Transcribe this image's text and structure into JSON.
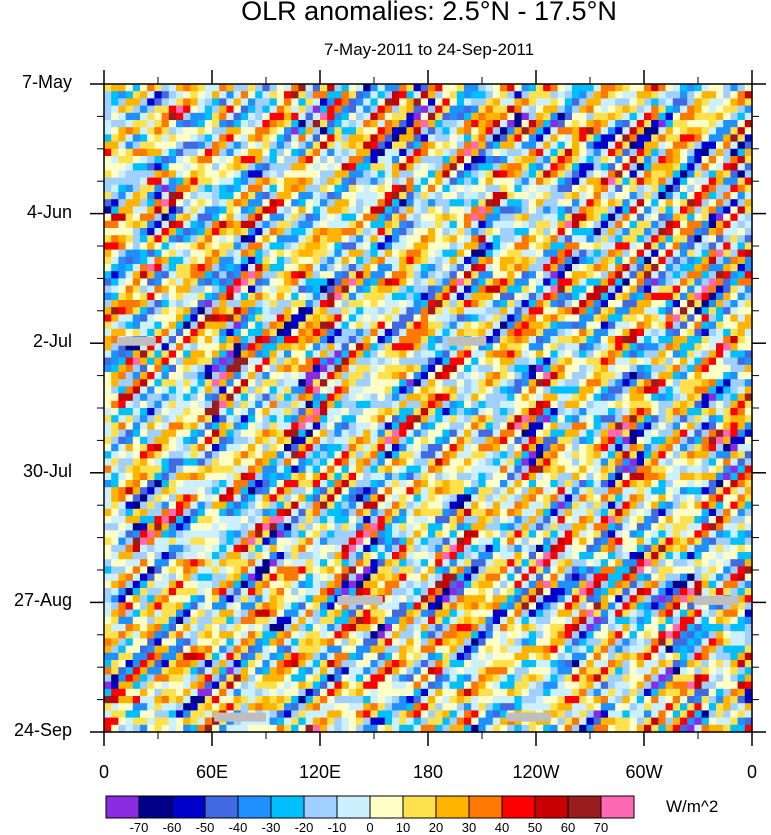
{
  "chart_data": {
    "type": "heatmap",
    "title": "OLR anomalies: 2.5°N - 17.5°N",
    "subtitle": "7-May-2011 to 24-Sep-2011",
    "x_ticks": [
      "0",
      "60E",
      "120E",
      "180",
      "120W",
      "60W",
      "0"
    ],
    "x_range_deg_east": [
      0,
      360
    ],
    "y_ticks": [
      "7-May",
      "4-Jun",
      "2-Jul",
      "30-Jul",
      "27-Aug",
      "24-Sep"
    ],
    "y_range": [
      "7-May-2011",
      "24-Sep-2011"
    ],
    "colorbar": {
      "units": "W/m^2",
      "levels": [
        -70,
        -60,
        -50,
        -40,
        -30,
        -20,
        -10,
        0,
        10,
        20,
        30,
        40,
        50,
        60,
        70
      ],
      "colors": [
        "#8a2be2",
        "#00008b",
        "#0000cd",
        "#4169e1",
        "#1e90ff",
        "#00bfff",
        "#a0d0ff",
        "#cdf0ff",
        "#ffffc8",
        "#ffe14d",
        "#ffb400",
        "#ff7800",
        "#ff0000",
        "#c80000",
        "#9b1c1c",
        "#ff69b4"
      ]
    },
    "missing_color": "#bebebe"
  }
}
